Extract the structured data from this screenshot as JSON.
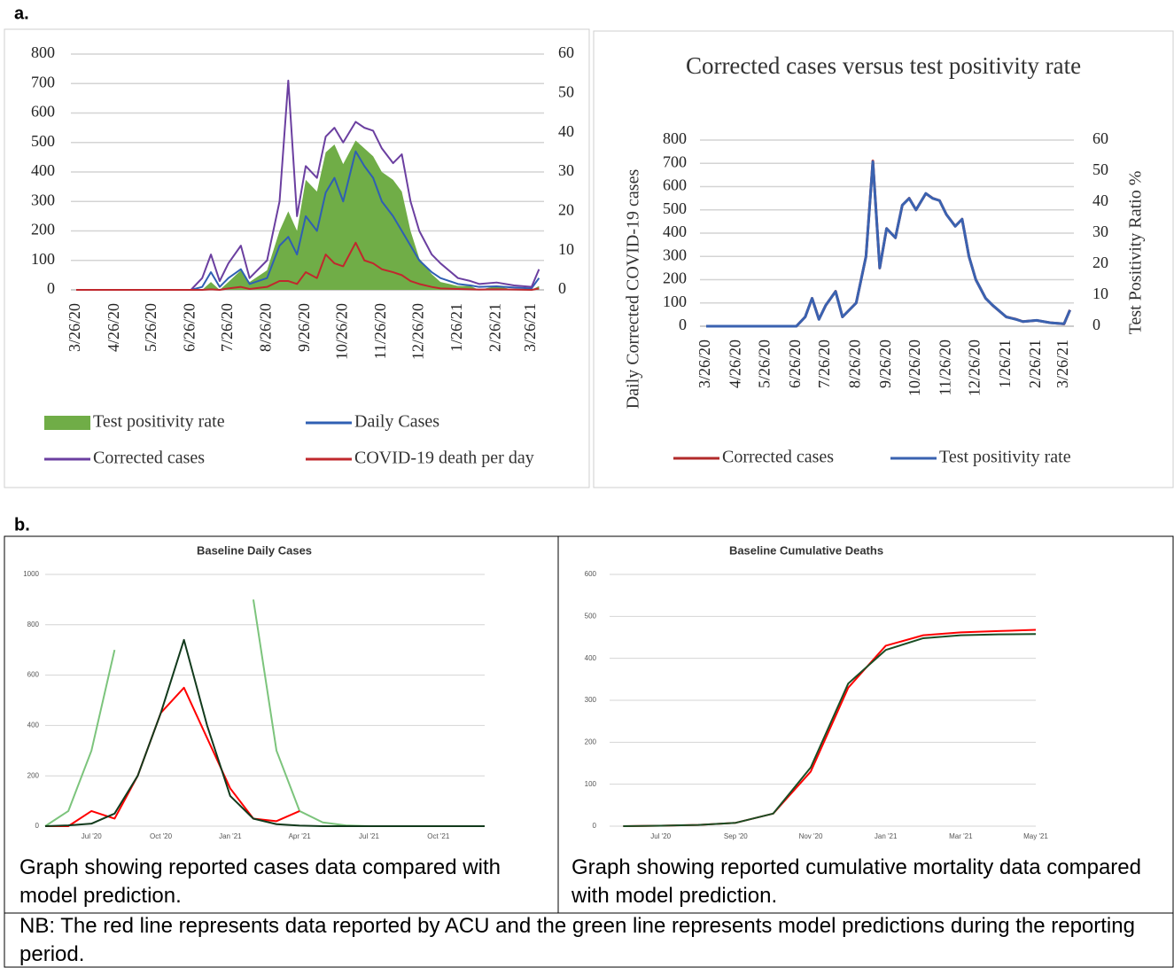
{
  "figure": {
    "panel_labels": [
      "a.",
      "b."
    ],
    "captions": [
      "Graph showing reported cases data compared with model prediction.",
      "Graph showing reported cumulative mortality data compared with model prediction."
    ],
    "note": "NB: The red line represents data reported by ACU and the green line represents model predictions during the reporting period."
  },
  "chart_data": [
    {
      "type": "line",
      "x": [
        "3/26/20",
        "4/26/20",
        "5/26/20",
        "6/26/20",
        "7/5/20",
        "7/12/20",
        "7/19/20",
        "7/26/20",
        "8/5/20",
        "8/12/20",
        "8/26/20",
        "9/5/20",
        "9/12/20",
        "9/19/20",
        "9/26/20",
        "10/5/20",
        "10/12/20",
        "10/19/20",
        "10/26/20",
        "11/5/20",
        "11/12/20",
        "11/19/20",
        "11/26/20",
        "12/5/20",
        "12/12/20",
        "12/19/20",
        "12/26/20",
        "1/5/21",
        "1/12/21",
        "1/26/21",
        "2/5/21",
        "2/12/21",
        "2/26/21",
        "3/12/21",
        "3/26/21",
        "4/1/21"
      ],
      "series": [
        {
          "name": "Test positivity rate",
          "color": "#70ad47",
          "kind": "area",
          "axis": "y2",
          "values": [
            0,
            0,
            0,
            0,
            0,
            2,
            0,
            2,
            5,
            2,
            5,
            15,
            20,
            15,
            28,
            25,
            35,
            37,
            32,
            38,
            36,
            34,
            30,
            28,
            25,
            15,
            8,
            4,
            2,
            1,
            1,
            0,
            1,
            0,
            0,
            1
          ]
        },
        {
          "name": "Daily Cases",
          "color": "#2f5fb3",
          "values": [
            0,
            0,
            0,
            0,
            10,
            60,
            10,
            40,
            70,
            20,
            40,
            150,
            180,
            120,
            250,
            200,
            330,
            380,
            300,
            470,
            420,
            380,
            300,
            250,
            200,
            150,
            100,
            60,
            40,
            20,
            15,
            10,
            12,
            8,
            5,
            40
          ]
        },
        {
          "name": "Corrected cases",
          "color": "#6b3fa0",
          "values": [
            0,
            0,
            0,
            0,
            40,
            120,
            30,
            90,
            150,
            40,
            100,
            300,
            710,
            250,
            420,
            380,
            520,
            550,
            500,
            570,
            550,
            540,
            480,
            430,
            460,
            300,
            200,
            120,
            90,
            40,
            30,
            20,
            25,
            15,
            10,
            70
          ]
        },
        {
          "name": "COVID-19 death per day",
          "color": "#c0282d",
          "values": [
            0,
            0,
            0,
            0,
            0,
            2,
            0,
            5,
            10,
            3,
            10,
            30,
            30,
            20,
            60,
            40,
            120,
            90,
            80,
            160,
            100,
            90,
            70,
            60,
            50,
            30,
            20,
            10,
            5,
            3,
            2,
            1,
            2,
            1,
            0,
            5
          ]
        }
      ],
      "xlim": [
        "3/26/20",
        "4/5/21"
      ],
      "xticks": [
        "3/26/20",
        "4/26/20",
        "5/26/20",
        "6/26/20",
        "7/26/20",
        "8/26/20",
        "9/26/20",
        "10/26/20",
        "11/26/20",
        "12/26/20",
        "1/26/21",
        "2/26/21",
        "3/26/21"
      ],
      "ylim": [
        0,
        800
      ],
      "yticks": [
        0,
        100,
        200,
        300,
        400,
        500,
        600,
        700,
        800
      ],
      "y2lim": [
        0,
        60
      ],
      "y2ticks": [
        0,
        10,
        20,
        30,
        40,
        50,
        60
      ],
      "grid": true,
      "legend": "bottom"
    },
    {
      "type": "line",
      "title": "Corrected cases versus test positivity rate",
      "ylabel": "Daily Corrected COVID-19 cases",
      "y2label": "Test Positivity Ratio %",
      "x": [
        "3/26/20",
        "4/26/20",
        "5/26/20",
        "6/26/20",
        "7/5/20",
        "7/12/20",
        "7/19/20",
        "7/26/20",
        "8/5/20",
        "8/12/20",
        "8/26/20",
        "9/5/20",
        "9/12/20",
        "9/19/20",
        "9/26/20",
        "10/5/20",
        "10/12/20",
        "10/19/20",
        "10/26/20",
        "11/5/20",
        "11/12/20",
        "11/19/20",
        "11/26/20",
        "12/5/20",
        "12/12/20",
        "12/19/20",
        "12/26/20",
        "1/5/21",
        "1/12/21",
        "1/26/21",
        "2/5/21",
        "2/12/21",
        "2/26/21",
        "3/12/21",
        "3/26/21",
        "4/1/21"
      ],
      "series": [
        {
          "name": "Corrected cases",
          "color": "#b22a2a",
          "values": [
            0,
            0,
            0,
            0,
            40,
            120,
            30,
            90,
            150,
            40,
            100,
            300,
            710,
            250,
            420,
            380,
            520,
            550,
            500,
            570,
            550,
            540,
            480,
            430,
            460,
            300,
            200,
            120,
            90,
            40,
            30,
            20,
            25,
            15,
            10,
            70
          ]
        },
        {
          "name": "Test positivity rate",
          "color": "#3a62b0",
          "axis": "y2",
          "values": [
            0,
            0,
            0,
            0,
            3,
            9,
            2.2,
            6.8,
            11.2,
            3,
            7.5,
            22.5,
            53,
            18.8,
            31.5,
            28.5,
            39,
            41.2,
            37.5,
            42.8,
            41.2,
            40.5,
            36,
            32.2,
            34.5,
            22.5,
            15,
            9,
            6.8,
            3,
            2.2,
            1.5,
            1.9,
            1.1,
            0.8,
            5.2
          ]
        }
      ],
      "xlim": [
        "3/26/20",
        "4/5/21"
      ],
      "xticks": [
        "3/26/20",
        "4/26/20",
        "5/26/20",
        "6/26/20",
        "7/26/20",
        "8/26/20",
        "9/26/20",
        "10/26/20",
        "11/26/20",
        "12/26/20",
        "1/26/21",
        "2/26/21",
        "3/26/21"
      ],
      "ylim": [
        0,
        800
      ],
      "yticks": [
        0,
        100,
        200,
        300,
        400,
        500,
        600,
        700,
        800
      ],
      "y2lim": [
        0,
        60
      ],
      "y2ticks": [
        0,
        10,
        20,
        30,
        40,
        50,
        60
      ],
      "grid": true,
      "legend": "bottom"
    },
    {
      "type": "line",
      "title": "Baseline Daily Cases",
      "series": [
        {
          "color": "#7cc47c",
          "x": [
            "2020-05",
            "2020-06",
            "2020-07",
            "2020-08",
            "2020-09",
            "2020-10",
            "2020-11",
            "2020-12",
            "2021-01",
            "2021-02",
            "2021-03",
            "2021-04",
            "2021-05",
            "2021-06",
            "2021-07",
            "2021-08",
            "2021-09",
            "2021-10",
            "2021-11",
            "2021-12"
          ],
          "values": [
            0,
            60,
            300,
            700,
            null,
            null,
            null,
            null,
            null,
            900,
            300,
            60,
            15,
            3,
            0,
            0,
            0,
            0,
            0,
            0
          ]
        },
        {
          "color": "#ff0000",
          "x": [
            "2020-05",
            "2020-06",
            "2020-07",
            "2020-08",
            "2020-09",
            "2020-10",
            "2020-11",
            "2020-12",
            "2021-01",
            "2021-02",
            "2021-03",
            "2021-04"
          ],
          "values": [
            0,
            0,
            60,
            30,
            200,
            450,
            550,
            350,
            150,
            30,
            20,
            60
          ]
        },
        {
          "color": "#123a1c",
          "x": [
            "2020-05",
            "2020-06",
            "2020-07",
            "2020-08",
            "2020-09",
            "2020-10",
            "2020-11",
            "2020-12",
            "2021-01",
            "2021-02",
            "2021-03",
            "2021-04",
            "2021-05",
            "2021-06",
            "2021-07",
            "2021-08",
            "2021-09",
            "2021-10",
            "2021-11",
            "2021-12"
          ],
          "values": [
            0,
            3,
            10,
            50,
            200,
            450,
            740,
            400,
            120,
            30,
            8,
            2,
            0,
            0,
            0,
            0,
            0,
            0,
            0,
            0
          ]
        }
      ],
      "xlim": [
        "2020-05",
        "2021-12"
      ],
      "xticks": [
        {
          "value": "2020-07",
          "label": "Jul '20"
        },
        {
          "value": "2020-10",
          "label": "Oct '20"
        },
        {
          "value": "2021-01",
          "label": "Jan '21"
        },
        {
          "value": "2021-04",
          "label": "Apr '21"
        },
        {
          "value": "2021-07",
          "label": "Jul '21"
        },
        {
          "value": "2021-10",
          "label": "Oct '21"
        }
      ],
      "ylim": [
        0,
        1000
      ],
      "yticks": [
        0,
        200,
        400,
        600,
        800,
        1000
      ],
      "grid": true
    },
    {
      "type": "line",
      "title": "Baseline Cumulative Deaths",
      "series": [
        {
          "color": "#ff0000",
          "x": [
            "2020-06",
            "2020-07",
            "2020-08",
            "2020-09",
            "2020-10",
            "2020-11",
            "2020-12",
            "2021-01",
            "2021-02",
            "2021-03",
            "2021-04",
            "2021-05"
          ],
          "values": [
            0,
            1,
            3,
            8,
            30,
            130,
            330,
            430,
            455,
            462,
            465,
            468
          ]
        },
        {
          "color": "#1a4d24",
          "x": [
            "2020-06",
            "2020-07",
            "2020-08",
            "2020-09",
            "2020-10",
            "2020-11",
            "2020-12",
            "2021-01",
            "2021-02",
            "2021-03",
            "2021-04",
            "2021-05"
          ],
          "values": [
            0,
            1,
            3,
            8,
            30,
            140,
            340,
            420,
            448,
            455,
            457,
            458
          ]
        }
      ],
      "xlim": [
        "2020-05",
        "2021-05"
      ],
      "xticks": [
        {
          "value": "2020-07",
          "label": "Jul '20"
        },
        {
          "value": "2020-09",
          "label": "Sep '20"
        },
        {
          "value": "2020-11",
          "label": "Nov '20"
        },
        {
          "value": "2021-01",
          "label": "Jan '21"
        },
        {
          "value": "2021-03",
          "label": "Mar '21"
        },
        {
          "value": "2021-05",
          "label": "May '21"
        }
      ],
      "ylim": [
        0,
        600
      ],
      "yticks": [
        0,
        100,
        200,
        300,
        400,
        500,
        600
      ],
      "grid": true
    }
  ]
}
